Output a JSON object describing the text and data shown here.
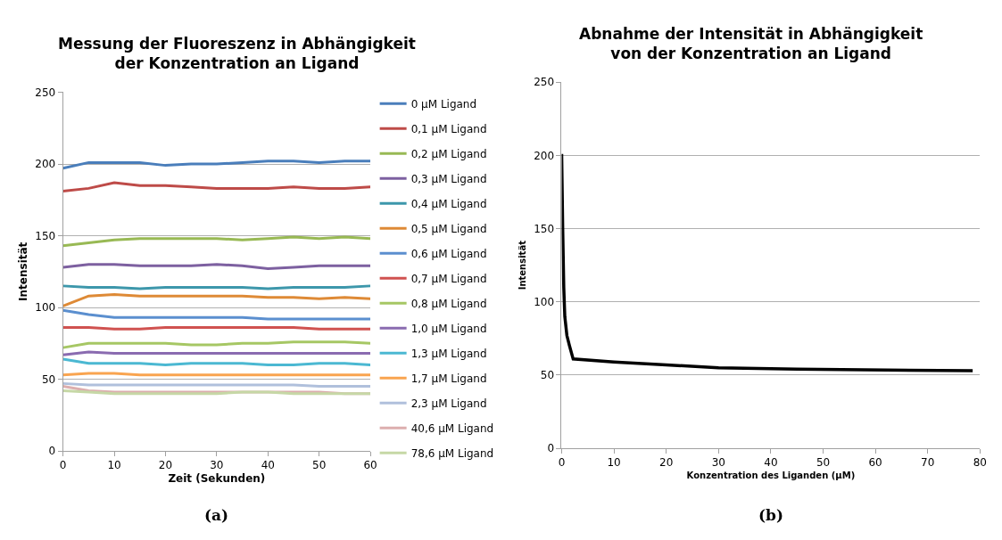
{
  "chart_data": [
    {
      "type": "line",
      "title": "Messung der Fluoreszenz in Abhängigkeit\nder Konzentration an Ligand",
      "xlabel": "Zeit (Sekunden)",
      "ylabel": "Intensität",
      "x": [
        0,
        5,
        10,
        15,
        20,
        25,
        30,
        35,
        40,
        45,
        50,
        55,
        60
      ],
      "xlim": [
        0,
        60
      ],
      "xticks": [
        0,
        10,
        20,
        30,
        40,
        50,
        60
      ],
      "ylim": [
        0,
        250
      ],
      "yticks": [
        0,
        50,
        100,
        150,
        200,
        250
      ],
      "grid": "y",
      "legend": "right",
      "annotations": [
        "(a)"
      ],
      "series": [
        {
          "name": "0 µM Ligand",
          "color": "#4a7ebb",
          "values": [
            197,
            201,
            201,
            201,
            199,
            200,
            200,
            201,
            202,
            202,
            201,
            202,
            202
          ]
        },
        {
          "name": "0,1 µM Ligand",
          "color": "#be4b48",
          "values": [
            181,
            183,
            187,
            185,
            185,
            184,
            183,
            183,
            183,
            184,
            183,
            183,
            184
          ]
        },
        {
          "name": "0,2 µM Ligand",
          "color": "#98b954",
          "values": [
            143,
            145,
            147,
            148,
            148,
            148,
            148,
            147,
            148,
            149,
            148,
            149,
            148
          ]
        },
        {
          "name": "0,3 µM Ligand",
          "color": "#7d60a0",
          "values": [
            128,
            130,
            130,
            129,
            129,
            129,
            130,
            129,
            127,
            128,
            129,
            129,
            129
          ]
        },
        {
          "name": "0,4 µM Ligand",
          "color": "#3d97ab",
          "values": [
            115,
            114,
            114,
            113,
            114,
            114,
            114,
            114,
            113,
            114,
            114,
            114,
            115
          ]
        },
        {
          "name": "0,5 µM Ligand",
          "color": "#de8a36",
          "values": [
            101,
            108,
            109,
            108,
            108,
            108,
            108,
            108,
            107,
            107,
            106,
            107,
            106
          ]
        },
        {
          "name": "0,6 µM Ligand",
          "color": "#5b8fcf",
          "values": [
            98,
            95,
            93,
            93,
            93,
            93,
            93,
            93,
            92,
            92,
            92,
            92,
            92
          ]
        },
        {
          "name": "0,7 µM Ligand",
          "color": "#d05250",
          "values": [
            86,
            86,
            85,
            85,
            86,
            86,
            86,
            86,
            86,
            86,
            85,
            85,
            85
          ]
        },
        {
          "name": "0,8 µM Ligand",
          "color": "#a6c764",
          "values": [
            72,
            75,
            75,
            75,
            75,
            74,
            74,
            75,
            75,
            76,
            76,
            76,
            75
          ]
        },
        {
          "name": "1,0 µM Ligand",
          "color": "#8a6bb0",
          "values": [
            67,
            69,
            68,
            68,
            68,
            68,
            68,
            68,
            68,
            68,
            68,
            68,
            68
          ]
        },
        {
          "name": "1,3 µM Ligand",
          "color": "#4bb8d2",
          "values": [
            64,
            61,
            61,
            61,
            60,
            61,
            61,
            61,
            60,
            60,
            61,
            61,
            60
          ]
        },
        {
          "name": "1,7 µM Ligand",
          "color": "#f9a44f",
          "values": [
            53,
            54,
            54,
            53,
            53,
            53,
            53,
            53,
            53,
            53,
            53,
            53,
            53
          ]
        },
        {
          "name": "2,3 µM Ligand",
          "color": "#b0c0dc",
          "values": [
            47,
            46,
            46,
            46,
            46,
            46,
            46,
            46,
            46,
            46,
            45,
            45,
            45
          ]
        },
        {
          "name": "40,6 µM Ligand",
          "color": "#dcaeae",
          "values": [
            45,
            42,
            41,
            41,
            41,
            41,
            41,
            41,
            41,
            41,
            41,
            40,
            40
          ]
        },
        {
          "name": "78,6 µM Ligand",
          "color": "#c6d8a6",
          "values": [
            42,
            41,
            40,
            40,
            40,
            40,
            40,
            41,
            41,
            40,
            40,
            40,
            40
          ]
        }
      ]
    },
    {
      "type": "line",
      "title": "Abnahme der Intensität in Abhängigkeit\nvon der Konzentration an Ligand",
      "xlabel": "Konzentration des Liganden (µM)",
      "ylabel": "Intensität",
      "xlim": [
        0,
        80
      ],
      "xticks": [
        0,
        10,
        20,
        30,
        40,
        50,
        60,
        70,
        80
      ],
      "ylim": [
        0,
        250
      ],
      "yticks": [
        0,
        50,
        100,
        150,
        200,
        250
      ],
      "grid": "y",
      "annotations": [
        "(b)"
      ],
      "series": [
        {
          "color": "#000000",
          "x": [
            0,
            0.2,
            0.4,
            0.6,
            1,
            1.5,
            2.2,
            10,
            20,
            30,
            45,
            78.6
          ],
          "values": [
            201,
            150,
            110,
            90,
            77,
            70,
            61,
            59,
            57,
            55,
            54,
            53
          ]
        }
      ]
    }
  ]
}
